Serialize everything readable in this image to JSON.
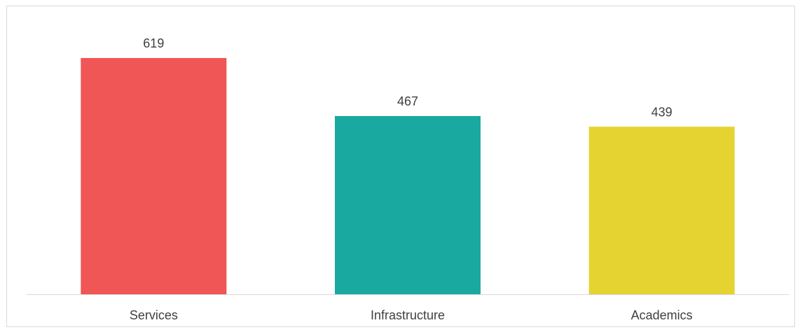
{
  "chart_data": {
    "type": "bar",
    "categories": [
      "Services",
      "Infrastructure",
      "Academics"
    ],
    "values": [
      619,
      467,
      439
    ],
    "colors": [
      "#ef5655",
      "#1aa9a0",
      "#e4d330"
    ],
    "title": "",
    "xlabel": "",
    "ylabel": "",
    "ylim": [
      0,
      700
    ],
    "grid": false,
    "legend": "none"
  }
}
